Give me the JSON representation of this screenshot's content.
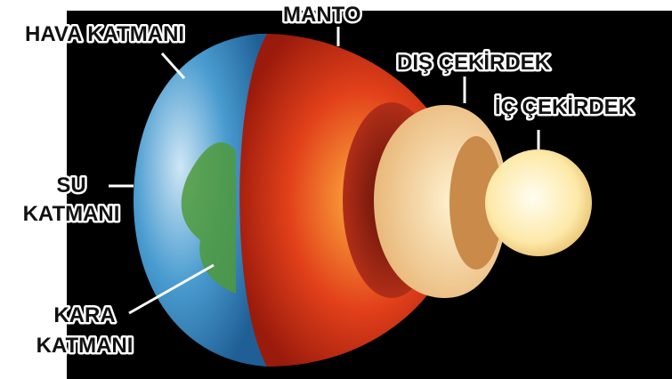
{
  "labels": [
    {
      "lines": [
        "HAVA KATMANI"
      ]
    },
    {
      "lines": [
        "MANTO"
      ]
    },
    {
      "lines": [
        "DIŞ ÇEKİRDEK"
      ]
    },
    {
      "lines": [
        "İÇ ÇEKİRDEK"
      ]
    },
    {
      "lines": [
        "SU",
        "KATMANI"
      ]
    },
    {
      "lines": [
        "KARA",
        "KATMANI"
      ]
    }
  ]
}
